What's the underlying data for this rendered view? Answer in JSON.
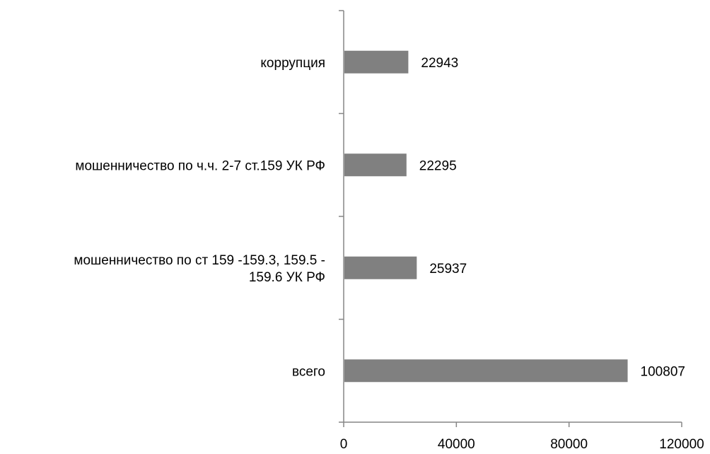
{
  "chart_data": {
    "type": "bar",
    "orientation": "horizontal",
    "categories": [
      [
        "всего"
      ],
      [
        "мошенничество по ст 159 -159.3, 159.5 -",
        "159.6 УК РФ"
      ],
      [
        "мошенничество по ч.ч. 2-7 ст.159 УК РФ"
      ],
      [
        "коррупция"
      ]
    ],
    "values": [
      100807,
      25937,
      22295,
      22943
    ],
    "value_labels": [
      "100807",
      "25937",
      "22295",
      "22943"
    ],
    "xlim": [
      0,
      120000
    ],
    "xticks": [
      0,
      40000,
      80000,
      120000
    ],
    "xtick_labels": [
      "0",
      "40000",
      "80000",
      "120000"
    ],
    "bar_color": "#808080",
    "axis_color": "#868686",
    "grid": false,
    "legend": "none",
    "title": "",
    "xlabel": "",
    "ylabel": ""
  }
}
